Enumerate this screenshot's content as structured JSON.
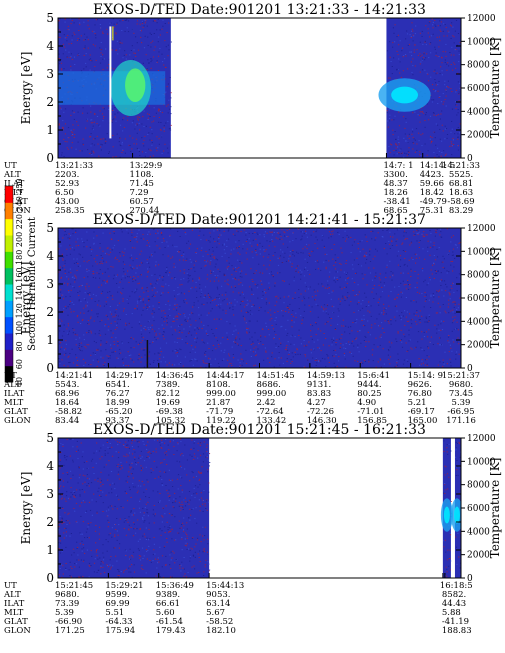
{
  "chart_data": [
    {
      "type": "heatmap",
      "title": "EXOS-D/TED   Date:901201   13:21:33 - 14:21:33",
      "ylabel": "Energy [eV]",
      "y2label": "Temperature [K]",
      "ylim": [
        0,
        5
      ],
      "y2lim": [
        0,
        12000
      ],
      "yticks": [
        "0",
        "1",
        "2",
        "3",
        "4",
        "5"
      ],
      "y2ticks": [
        "0",
        "2000",
        "4000",
        "6000",
        "8000",
        "10000",
        "12000"
      ],
      "data_segments": [
        {
          "start": 0,
          "end": 0.28,
          "features": "narrow spike",
          "feature_at": 0.13
        },
        {
          "start": 0.815,
          "end": 1.0,
          "features": "blob",
          "feature_at": 0.86
        }
      ],
      "ephemeris": {
        "labels": [
          "UT",
          "ALT",
          "ILAT",
          "MLT",
          "GLAT",
          "GLON"
        ],
        "columns": [
          {
            "pos": 0.0,
            "values": [
              "13:21:33",
              "2203.",
              "52.93",
              "6.50",
              "43.00",
              "258.35"
            ]
          },
          {
            "pos": 0.185,
            "values": [
              "13:29:9",
              "1108.",
              "71.45",
              "7.29",
              "60.57",
              "270.44"
            ]
          },
          {
            "pos": 0.815,
            "values": [
              "14:7: 1",
              "3300.",
              "48.37",
              "18.26",
              "-38.41",
              "68.65"
            ]
          },
          {
            "pos": 0.905,
            "values": [
              "14:14: 5",
              "4423.",
              "59.66",
              "18.42",
              "-49.79",
              "75.31"
            ]
          },
          {
            "pos": 1.0,
            "values": [
              "14:21:33",
              "5525.",
              "68.81",
              "18.63",
              "-58.69",
              "83.29"
            ]
          }
        ]
      }
    },
    {
      "type": "heatmap",
      "title": "EXOS-D/TED   Date:901201   14:21:41 - 15:21:37",
      "ylabel": "Energy [eV]",
      "y2label": "Temperature [K]",
      "ylim": [
        0,
        5
      ],
      "y2lim": [
        0,
        12000
      ],
      "yticks": [
        "0",
        "1",
        "2",
        "3",
        "4",
        "5"
      ],
      "y2ticks": [
        "0",
        "2000",
        "4000",
        "6000",
        "8000",
        "10000",
        "12000"
      ],
      "data_segments": [
        {
          "start": 0,
          "end": 1.0,
          "features": "noise",
          "feature_at": 0.22
        }
      ],
      "ephemeris": {
        "labels": [
          "UT",
          "ALT",
          "ILAT",
          "MLT",
          "GLAT",
          "GLON"
        ],
        "columns": [
          {
            "pos": 0.0,
            "values": [
              "14:21:41",
              "5543.",
              "68.96",
              "18.64",
              "-58.82",
              "83.44"
            ]
          },
          {
            "pos": 0.125,
            "values": [
              "14:29:17",
              "6541.",
              "76.27",
              "18.99",
              "-65.20",
              "93.37"
            ]
          },
          {
            "pos": 0.25,
            "values": [
              "14:36:45",
              "7389.",
              "82.12",
              "19.69",
              "-69.38",
              "105.32"
            ]
          },
          {
            "pos": 0.375,
            "values": [
              "14:44:17",
              "8108.",
              "999.00",
              "21.87",
              "-71.79",
              "119.22"
            ]
          },
          {
            "pos": 0.5,
            "values": [
              "14:51:45",
              "8686.",
              "999.00",
              "2.42",
              "-72.64",
              "133.42"
            ]
          },
          {
            "pos": 0.625,
            "values": [
              "14:59:13",
              "9131.",
              "83.83",
              "4.27",
              "-72.26",
              "146.30"
            ]
          },
          {
            "pos": 0.75,
            "values": [
              "15:6:41",
              "9444.",
              "80.25",
              "4.90",
              "-71.01",
              "156.85"
            ]
          },
          {
            "pos": 0.875,
            "values": [
              "15:14: 9",
              "9626.",
              "76.80",
              "5.21",
              "-69.17",
              "165.00"
            ]
          },
          {
            "pos": 1.0,
            "values": [
              "15:21:37",
              "9680.",
              "73.45",
              "5.39",
              "-66.95",
              "171.16"
            ]
          }
        ]
      }
    },
    {
      "type": "heatmap",
      "title": "EXOS-D/TED   Date:901201   15:21:45 - 16:21:33",
      "ylabel": "Energy [eV]",
      "y2label": "Temperature [K]",
      "ylim": [
        0,
        5
      ],
      "y2lim": [
        0,
        12000
      ],
      "yticks": [
        "0",
        "1",
        "2",
        "3",
        "4",
        "5"
      ],
      "y2ticks": [
        "0",
        "2000",
        "4000",
        "6000",
        "8000",
        "10000",
        "12000"
      ],
      "data_segments": [
        {
          "start": 0,
          "end": 0.375,
          "features": "noise",
          "feature_at": -1
        },
        {
          "start": 0.955,
          "end": 0.975,
          "features": "blob",
          "feature_at": 0.965
        },
        {
          "start": 0.985,
          "end": 1.0,
          "features": "blob",
          "feature_at": 0.99
        }
      ],
      "ephemeris": {
        "labels": [
          "UT",
          "ALT",
          "ILAT",
          "MLT",
          "GLAT",
          "GLON"
        ],
        "columns": [
          {
            "pos": 0.0,
            "values": [
              "15:21:45",
              "9680.",
              "73.39",
              "5.39",
              "-66.90",
              "171.25"
            ]
          },
          {
            "pos": 0.125,
            "values": [
              "15:29:21",
              "9599.",
              "69.99",
              "5.51",
              "-64.33",
              "175.94"
            ]
          },
          {
            "pos": 0.25,
            "values": [
              "15:36:49",
              "9389.",
              "66.61",
              "5.60",
              "-61.54",
              "179.43"
            ]
          },
          {
            "pos": 0.375,
            "values": [
              "15:44:13",
              "9053.",
              "63.14",
              "5.67",
              "-58.52",
              "182.10"
            ]
          },
          {
            "pos": 0.955,
            "values": [
              "16:18:5",
              "",
              "",
              "",
              "",
              ""
            ]
          },
          {
            "pos": 0.96,
            "values": [
              "",
              "8582.",
              "44.43",
              "5.88",
              "-41.19",
              "188.83"
            ]
          }
        ]
      }
    }
  ],
  "colorbar": {
    "label": "Second Harmonic Current",
    "ticks": [
      "40",
      "60",
      "80",
      "100",
      "120",
      "140",
      "160",
      "180",
      "200",
      "220",
      "240",
      "250"
    ],
    "colors": [
      "#000000",
      "#4b0082",
      "#2020c8",
      "#0050ff",
      "#00a0ff",
      "#00e0d0",
      "#00c060",
      "#40e000",
      "#c0f000",
      "#ffff00",
      "#ff8000",
      "#ff0000"
    ]
  },
  "colors": {
    "background": "#2b2fb4",
    "noise_dark": "#1a1e8c",
    "noise_red": "#b02030",
    "hot": "#00e8ff"
  }
}
